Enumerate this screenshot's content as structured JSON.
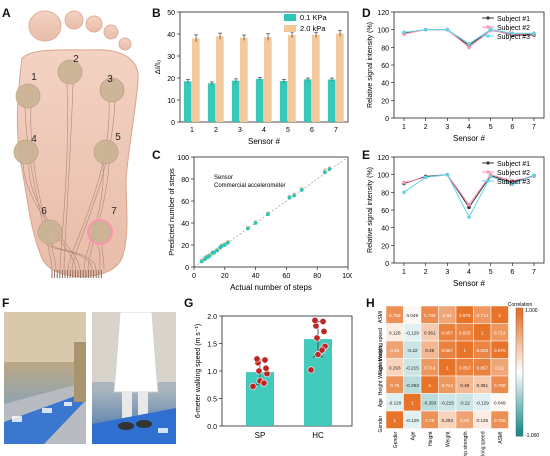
{
  "panels": {
    "A": "A",
    "B": "B",
    "C": "C",
    "D": "D",
    "E": "E",
    "F": "F",
    "G": "G",
    "H": "H"
  },
  "colors": {
    "teal": "#2ec4b6",
    "tan": "#f2c79a",
    "black": "#333333",
    "pink": "#ff8fb0",
    "cyan": "#5fd4e6",
    "red": "#c02525",
    "hot": "#e8742a",
    "cool": "#1f8e8e"
  },
  "panelA": {
    "sensor_labels": [
      "1",
      "2",
      "3",
      "4",
      "5",
      "6",
      "7"
    ]
  },
  "chart_data": [
    {
      "id": "B",
      "type": "bar",
      "categories": [
        "1",
        "2",
        "3",
        "4",
        "5",
        "6",
        "7"
      ],
      "series": [
        {
          "name": "0.1 KPa",
          "values": [
            18.5,
            17.6,
            18.8,
            19.6,
            18.6,
            19.4,
            19.3
          ],
          "errors": [
            0.8,
            0.6,
            0.8,
            0.7,
            0.8,
            0.6,
            0.7
          ]
        },
        {
          "name": "2.0 kPa",
          "values": [
            38.0,
            39.0,
            38.3,
            38.6,
            39.6,
            39.6,
            40.3
          ],
          "errors": [
            1.6,
            1.4,
            1.2,
            1.5,
            1.3,
            1.2,
            1.4
          ]
        }
      ],
      "xlabel": "Sensor #",
      "ylabel": "ΔI/I₀",
      "ylim": [
        0,
        50
      ],
      "yticks": [
        0,
        10,
        20,
        30,
        40,
        50
      ],
      "legend": "top-right"
    },
    {
      "id": "C",
      "type": "scatter",
      "series": [
        {
          "name": "Sensor",
          "points": [
            [
              5,
              6
            ],
            [
              7,
              8
            ],
            [
              8,
              8
            ],
            [
              9,
              10
            ],
            [
              10,
              11
            ],
            [
              12,
              12
            ],
            [
              13,
              14
            ],
            [
              15,
              16
            ],
            [
              17,
              17
            ],
            [
              18,
              20
            ],
            [
              20,
              21
            ],
            [
              22,
              23
            ],
            [
              35,
              36
            ],
            [
              40,
              41
            ],
            [
              48,
              49
            ],
            [
              62,
              64
            ],
            [
              65,
              66
            ],
            [
              70,
              71
            ],
            [
              85,
              88
            ],
            [
              88,
              90
            ]
          ]
        },
        {
          "name": "Commercial accelerometer",
          "points": [
            [
              5,
              5
            ],
            [
              7,
              7
            ],
            [
              8,
              9
            ],
            [
              9,
              9
            ],
            [
              10,
              10
            ],
            [
              12,
              13
            ],
            [
              13,
              13
            ],
            [
              15,
              15
            ],
            [
              17,
              18
            ],
            [
              18,
              19
            ],
            [
              20,
              20
            ],
            [
              22,
              22
            ],
            [
              35,
              35
            ],
            [
              40,
              40
            ],
            [
              48,
              48
            ],
            [
              62,
              63
            ],
            [
              65,
              65
            ],
            [
              70,
              70
            ],
            [
              85,
              86
            ],
            [
              88,
              89
            ]
          ]
        }
      ],
      "xlabel": "Actual number of steps",
      "ylabel": "Predicted number of steps",
      "xlim": [
        0,
        100
      ],
      "ylim": [
        0,
        100
      ],
      "xticks": [
        0,
        20,
        40,
        60,
        80,
        100
      ],
      "yticks": [
        0,
        20,
        40,
        60,
        80,
        100
      ],
      "legend": "top-left"
    },
    {
      "id": "D",
      "type": "line",
      "x": [
        "1",
        "2",
        "3",
        "4",
        "5",
        "6",
        "7"
      ],
      "series": [
        {
          "name": "Subject #1",
          "values": [
            96,
            100,
            100,
            82,
            100,
            94,
            94
          ]
        },
        {
          "name": "Subject #2",
          "values": [
            95,
            100,
            100,
            80,
            99,
            95,
            95
          ]
        },
        {
          "name": "Subject #3",
          "values": [
            97,
            100,
            100,
            84,
            100,
            96,
            96
          ]
        }
      ],
      "xlabel": "Sensor #",
      "ylabel": "Relative signal intensity (%)",
      "ylim": [
        0,
        120
      ],
      "yticks": [
        0,
        20,
        40,
        60,
        80,
        100,
        120
      ],
      "legend": "top-right"
    },
    {
      "id": "E",
      "type": "line",
      "x": [
        "1",
        "2",
        "3",
        "4",
        "5",
        "6",
        "7"
      ],
      "series": [
        {
          "name": "Subject #1",
          "values": [
            90,
            98,
            100,
            63,
            99,
            91,
            99
          ]
        },
        {
          "name": "Subject #2",
          "values": [
            91,
            97,
            100,
            66,
            100,
            93,
            98
          ]
        },
        {
          "name": "Subject #3",
          "values": [
            80,
            97,
            100,
            52,
            98,
            89,
            99
          ]
        }
      ],
      "xlabel": "Sensor #",
      "ylabel": "Relative signal intensity (%)",
      "ylim": [
        0,
        120
      ],
      "yticks": [
        0,
        20,
        40,
        60,
        80,
        100,
        120
      ],
      "legend": "top-right"
    },
    {
      "id": "G",
      "type": "bar",
      "categories": [
        "SP",
        "HC"
      ],
      "values": [
        0.98,
        1.58
      ],
      "errors": [
        0.22,
        0.32
      ],
      "points": [
        [
          0.72,
          0.82,
          0.95,
          1.0,
          1.05,
          1.15,
          1.2,
          1.22,
          0.78
        ],
        [
          1.02,
          1.3,
          1.45,
          1.6,
          1.72,
          1.82,
          1.9,
          1.92,
          1.38
        ]
      ],
      "xlabel": "",
      "ylabel": "6-meter walking speed (m s⁻¹)",
      "ylim": [
        0,
        2.0
      ],
      "yticks": [
        "0.0",
        "0.5",
        "1.0",
        "1.5",
        "2.0"
      ]
    },
    {
      "id": "H",
      "type": "heatmap",
      "labels": [
        "Gender",
        "Age",
        "Height",
        "Weight",
        "Grip strength",
        "Walking speed",
        "ASMI"
      ],
      "matrix": [
        [
          1,
          -0.129,
          0.75,
          0.293,
          0.63,
          0.128,
          0.758
        ],
        [
          -0.129,
          1,
          -0.293,
          -0.215,
          -0.22,
          -0.129,
          0.049
        ],
        [
          0.75,
          -0.293,
          1,
          0.714,
          0.49,
          0.361,
          0.798
        ],
        [
          0.293,
          -0.215,
          0.714,
          1,
          0.857,
          0.857,
          0.61
        ],
        [
          0.63,
          -0.22,
          0.49,
          0.857,
          1,
          0.833,
          0.976
        ],
        [
          0.128,
          -0.129,
          0.361,
          0.857,
          0.833,
          1,
          0.714
        ],
        [
          0.758,
          0.049,
          0.798,
          0.61,
          0.976,
          0.714,
          1
        ]
      ],
      "colorbar": {
        "title": "Correlation",
        "max": "1.000",
        "min": "-1.000"
      }
    }
  ]
}
